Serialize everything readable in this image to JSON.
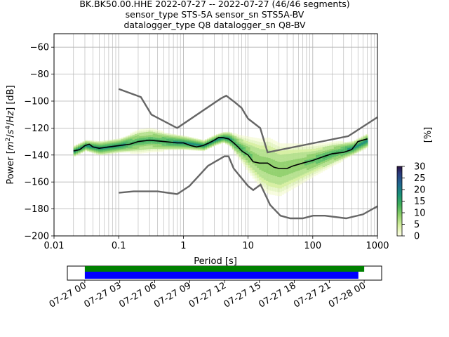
{
  "figure": {
    "title_lines": [
      "BK.BK50.00.HHE   2022-07-27 -- 2022-07-27  (46/46 segments)",
      "sensor_type STS-5A sensor_sn STS5A-BV",
      "datalogger_type Q8 datalogger_sn Q8-BV"
    ]
  },
  "chart_data": [
    {
      "type": "heatmap",
      "xlabel": "Period [s]",
      "ylabel_parts": [
        "Power [",
        "m",
        "2",
        "/",
        "s",
        "4",
        "/",
        "Hz",
        "] [dB]"
      ],
      "xscale": "log",
      "xlim": [
        0.01,
        1000
      ],
      "ylim": [
        -200,
        -50
      ],
      "xticks": [
        {
          "value": 0.01,
          "label": "0.01"
        },
        {
          "value": 0.1,
          "label": "0.1"
        },
        {
          "value": 1,
          "label": "1"
        },
        {
          "value": 10,
          "label": "10"
        },
        {
          "value": 100,
          "label": "100"
        },
        {
          "value": 1000,
          "label": "1000"
        }
      ],
      "yticks": [
        {
          "value": -60,
          "label": "−60"
        },
        {
          "value": -80,
          "label": "−80"
        },
        {
          "value": -100,
          "label": "−100"
        },
        {
          "value": -120,
          "label": "−120"
        },
        {
          "value": -140,
          "label": "−140"
        },
        {
          "value": -160,
          "label": "−160"
        },
        {
          "value": -180,
          "label": "−180"
        },
        {
          "value": -200,
          "label": "−200"
        }
      ],
      "grid": true,
      "mode_curve": {
        "periods": [
          0.02,
          0.025,
          0.03,
          0.035,
          0.04,
          0.05,
          0.07,
          0.1,
          0.15,
          0.2,
          0.3,
          0.5,
          0.8,
          1,
          1.3,
          1.6,
          2,
          2.5,
          3,
          3.5,
          4,
          5,
          6,
          7,
          8,
          10,
          12,
          15,
          20,
          25,
          30,
          40,
          50,
          70,
          100,
          150,
          200,
          300,
          400,
          500,
          700
        ],
        "power": [
          -137,
          -136,
          -133,
          -132,
          -134,
          -135,
          -134,
          -133,
          -132,
          -130,
          -129,
          -130,
          -131,
          -131,
          -133,
          -134,
          -133,
          -131,
          -129,
          -127,
          -127,
          -128,
          -131,
          -134,
          -137,
          -140,
          -145,
          -146,
          -146,
          -149,
          -150,
          -150,
          -148,
          -146,
          -144,
          -141,
          -139,
          -138,
          -136,
          -130,
          -128
        ]
      },
      "low_noise_model": {
        "periods": [
          0.1,
          0.17,
          0.4,
          0.8,
          1.24,
          2.4,
          4.3,
          5,
          6,
          10,
          12,
          15.6,
          21.9,
          31.6,
          45,
          70,
          101,
          154,
          328,
          600,
          1000
        ],
        "power": [
          -168,
          -167,
          -167,
          -169,
          -163,
          -148,
          -141,
          -141,
          -150,
          -163,
          -166,
          -162,
          -177,
          -185,
          -187,
          -187,
          -185,
          -185,
          -187,
          -184,
          -178
        ]
      },
      "high_noise_model": {
        "periods": [
          0.1,
          0.22,
          0.32,
          0.8,
          3.8,
          4.6,
          6.3,
          7.9,
          10,
          15.4,
          20,
          354.8,
          1000
        ],
        "power": [
          -91,
          -97,
          -110,
          -120,
          -98,
          -96,
          -101,
          -105,
          -113,
          -120,
          -138,
          -126,
          -112
        ]
      },
      "density_band": {
        "periods": [
          0.02,
          0.03,
          0.05,
          0.1,
          0.2,
          0.3,
          0.5,
          1,
          2,
          3,
          4,
          5,
          7,
          10,
          15,
          20,
          30,
          50,
          100,
          200,
          400,
          700
        ],
        "center": [
          -137,
          -133,
          -135,
          -133,
          -130,
          -129,
          -130,
          -131,
          -133,
          -129,
          -127,
          -128,
          -134,
          -140,
          -146,
          -148,
          -151,
          -148,
          -144,
          -139,
          -135,
          -129
        ],
        "half_width": [
          3,
          3,
          4,
          4,
          6,
          6,
          5,
          4,
          3,
          3,
          3,
          4,
          6,
          9,
          12,
          14,
          13,
          11,
          8,
          6,
          4,
          4
        ]
      },
      "colorbar": {
        "label": "[%]",
        "min": 0,
        "max": 30,
        "ticks": [
          {
            "value": 0,
            "label": "0"
          },
          {
            "value": 5,
            "label": "5"
          },
          {
            "value": 10,
            "label": "10"
          },
          {
            "value": 15,
            "label": "15"
          },
          {
            "value": 20,
            "label": "20"
          },
          {
            "value": 25,
            "label": "25"
          },
          {
            "value": 30,
            "label": "30"
          }
        ]
      }
    },
    {
      "type": "timeline",
      "range_hours": [
        -1.5,
        25.5
      ],
      "xticks": [
        {
          "hour": 0,
          "label": "07-27 00"
        },
        {
          "hour": 3,
          "label": "07-27 03"
        },
        {
          "hour": 6,
          "label": "07-27 06"
        },
        {
          "hour": 9,
          "label": "07-27 09"
        },
        {
          "hour": 12,
          "label": "07-27 12"
        },
        {
          "hour": 15,
          "label": "07-27 15"
        },
        {
          "hour": 18,
          "label": "07-27 18"
        },
        {
          "hour": 21,
          "label": "07-27 21"
        },
        {
          "hour": 24,
          "label": "07-28 00"
        }
      ],
      "data_bar": {
        "start_hour": 0,
        "end_hour": 24,
        "color": "#008000"
      },
      "psd_bar": {
        "start_hour": 0,
        "end_hour": 23.5,
        "color": "#0000ff"
      }
    }
  ],
  "colors": {
    "mode": "#000000",
    "noise_model": "#666666",
    "grid": "#b0b0b0"
  }
}
